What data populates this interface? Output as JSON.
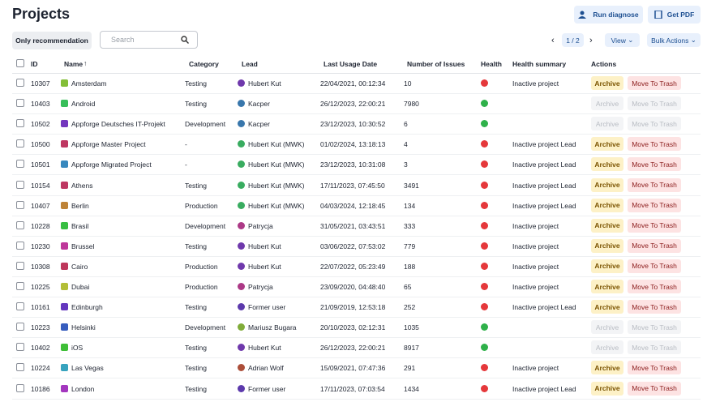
{
  "header": {
    "title": "Projects",
    "buttons": [
      "Run diagnose",
      "Get PDF"
    ]
  },
  "toolbar": {
    "filter": "Only recommendation",
    "search_placeholder": "Search",
    "page": "1 / 2",
    "view": "View",
    "bulk": "Bulk Actions"
  },
  "table": {
    "columns": [
      "ID",
      "Name",
      "Category",
      "Lead",
      "Last Usage Date",
      "Number of Issues",
      "Health",
      "Health summary",
      "Actions"
    ],
    "row_actions": [
      "Archive",
      "Move To Trash"
    ],
    "health_colors": {
      "bad": "#e5383b",
      "good": "#2fb14a"
    },
    "rows": [
      [
        10307,
        "Amsterdam",
        "Testing",
        "Hubert Kut",
        "22/04/2021, 00:12:34",
        10,
        "bad",
        "Inactive project",
        true
      ],
      [
        10403,
        "Android",
        "Testing",
        "Kacper",
        "26/12/2023, 22:00:21",
        7980,
        "good",
        null,
        false
      ],
      [
        10502,
        "Appforge Deutsches IT-Projekt",
        "Development",
        "Kacper",
        "23/12/2023, 10:30:52",
        6,
        "good",
        null,
        false
      ],
      [
        10500,
        "Appforge Master Project",
        "-",
        "Hubert Kut (MWK)",
        "01/02/2024, 13:18:13",
        4,
        "bad",
        "Inactive project Lead",
        true
      ],
      [
        10501,
        "Appforge Migrated Project",
        "-",
        "Hubert Kut (MWK)",
        "23/12/2023, 10:31:08",
        3,
        "bad",
        "Inactive project Lead",
        true
      ],
      [
        10154,
        "Athens",
        "Testing",
        "Hubert Kut (MWK)",
        "17/11/2023, 07:45:50",
        3491,
        "bad",
        "Inactive project Lead",
        true
      ],
      [
        10407,
        "Berlin",
        "Production",
        "Hubert Kut (MWK)",
        "04/03/2024, 12:18:45",
        134,
        "bad",
        "Inactive project Lead",
        true
      ],
      [
        10228,
        "Brasil",
        "Development",
        "Patrycja",
        "31/05/2021, 03:43:51",
        333,
        "bad",
        "Inactive project",
        true
      ],
      [
        10230,
        "Brussel",
        "Testing",
        "Hubert Kut",
        "03/06/2022, 07:53:02",
        779,
        "bad",
        "Inactive project",
        true
      ],
      [
        10308,
        "Cairo",
        "Production",
        "Hubert Kut",
        "22/07/2022, 05:23:49",
        188,
        "bad",
        "Inactive project",
        true
      ],
      [
        10225,
        "Dubai",
        "Production",
        "Patrycja",
        "23/09/2020, 04:48:40",
        65,
        "bad",
        "Inactive project",
        true
      ],
      [
        10161,
        "Edinburgh",
        "Testing",
        "Former user",
        "21/09/2019, 12:53:18",
        252,
        "bad",
        "Inactive project Lead",
        true
      ],
      [
        10223,
        "Helsinki",
        "Development",
        "Mariusz Bugara",
        "20/10/2023, 02:12:31",
        1035,
        "good",
        null,
        false
      ],
      [
        10402,
        "iOS",
        "Testing",
        "Hubert Kut",
        "26/12/2023, 22:00:21",
        8917,
        "good",
        null,
        false
      ],
      [
        10224,
        "Las Vegas",
        "Testing",
        "Adrian Wolf",
        "15/09/2021, 07:47:36",
        291,
        "bad",
        "Inactive project",
        true
      ],
      [
        10186,
        "London",
        "Testing",
        "Former user",
        "17/11/2023, 07:03:54",
        1434,
        "bad",
        "Inactive project Lead",
        true
      ]
    ]
  }
}
